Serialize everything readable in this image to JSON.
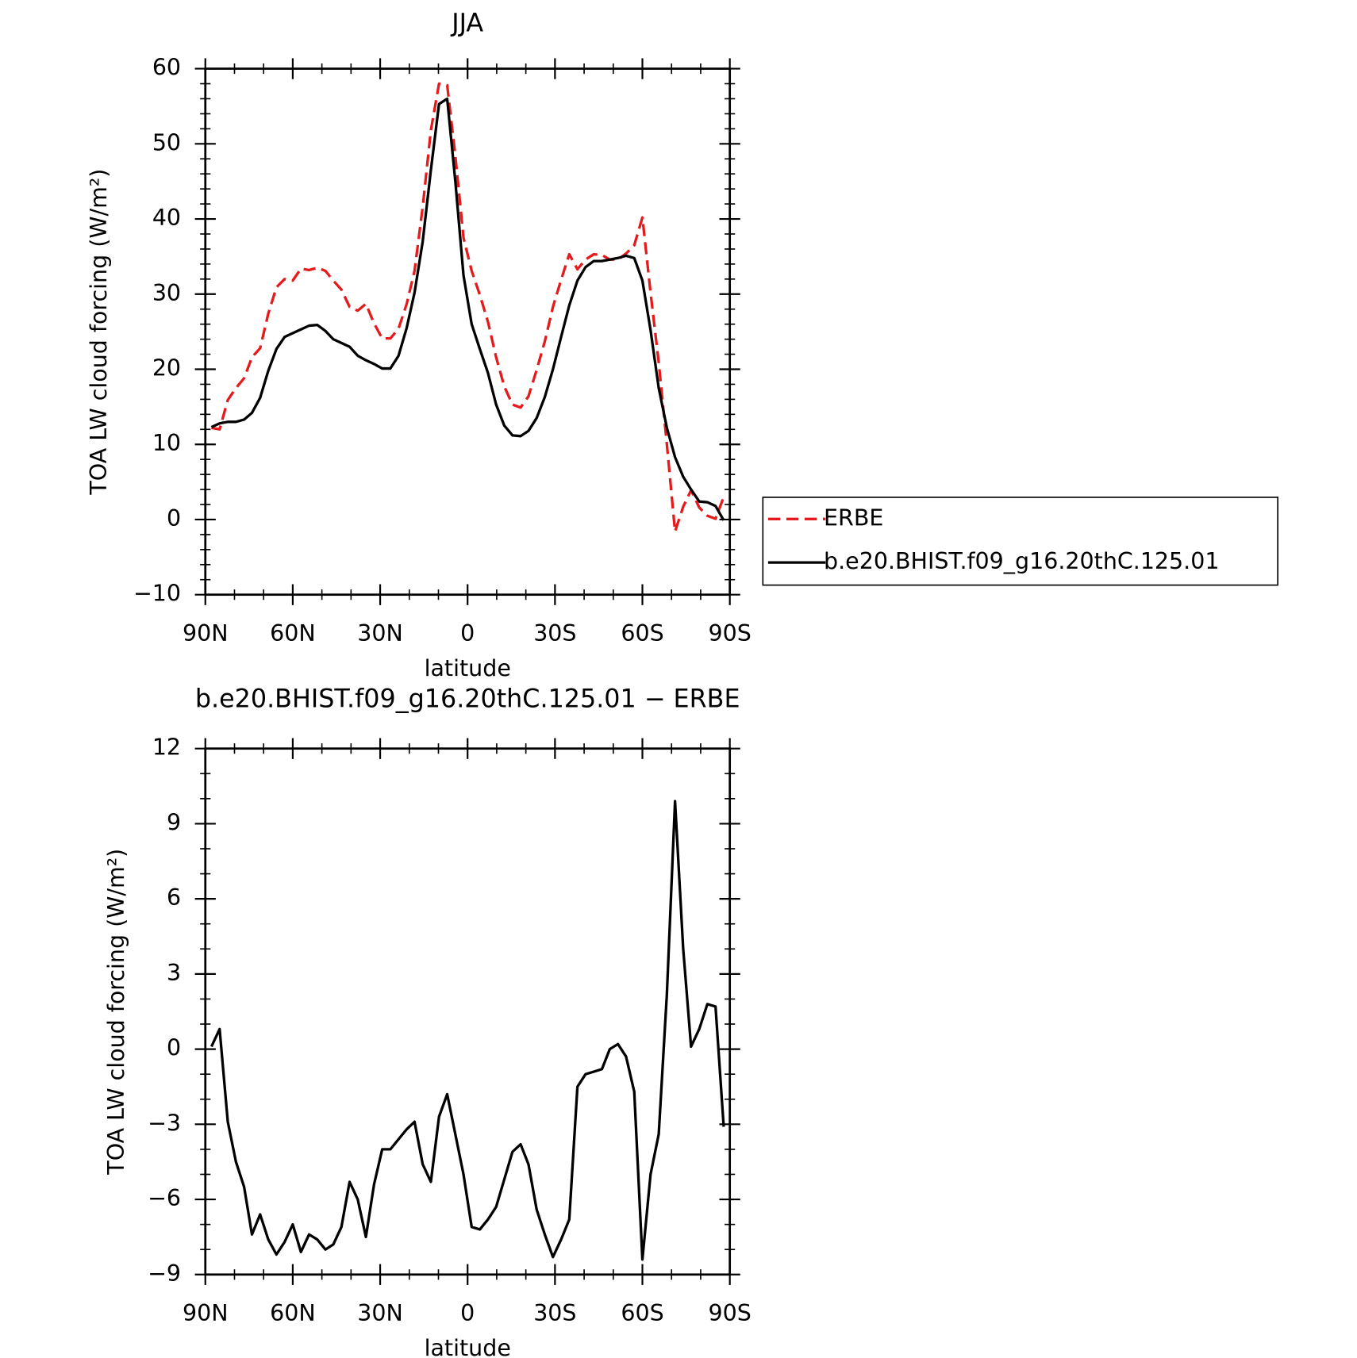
{
  "chart_data": [
    {
      "type": "line",
      "title": "JJA",
      "xlabel": "latitude",
      "ylabel": "TOA LW cloud forcing (W/m²)",
      "x": [
        87.9,
        85.1,
        82.3,
        79.5,
        76.7,
        74.0,
        71.2,
        68.4,
        65.6,
        62.8,
        60.0,
        57.2,
        54.4,
        51.6,
        48.8,
        46.1,
        43.3,
        40.5,
        37.7,
        34.9,
        32.1,
        29.3,
        26.5,
        23.7,
        20.9,
        18.2,
        15.4,
        12.6,
        9.8,
        7.0,
        4.2,
        1.4,
        -1.4,
        -4.2,
        -7.0,
        -9.8,
        -12.6,
        -15.4,
        -18.2,
        -20.9,
        -23.7,
        -26.5,
        -29.3,
        -32.1,
        -34.9,
        -37.7,
        -40.5,
        -43.3,
        -46.1,
        -48.8,
        -51.6,
        -54.4,
        -57.2,
        -60.0,
        -62.8,
        -65.6,
        -68.4,
        -71.2,
        -74.0,
        -76.7,
        -79.5,
        -82.3,
        -85.1,
        -87.9
      ],
      "series": [
        {
          "name": "ERBE",
          "color": "#e41a1c",
          "dash": true,
          "values": [
            12.2,
            12.0,
            15.9,
            17.5,
            18.8,
            21.6,
            22.8,
            27.4,
            30.9,
            32.0,
            31.8,
            33.4,
            33.2,
            33.5,
            33.1,
            31.8,
            30.6,
            28.3,
            27.8,
            28.7,
            26.1,
            24.1,
            24.1,
            25.4,
            28.7,
            33.1,
            41.6,
            51.8,
            58.0,
            57.8,
            48.4,
            37.5,
            33.1,
            29.9,
            26.3,
            21.6,
            17.7,
            15.3,
            14.9,
            16.4,
            19.9,
            23.7,
            28.3,
            31.9,
            35.3,
            33.3,
            34.6,
            35.3,
            35.2,
            34.6,
            34.6,
            35.4,
            36.5,
            40.2,
            30.2,
            20.9,
            10.0,
            -1.6,
            1.7,
            3.9,
            1.6,
            0.5,
            0.1,
            3.0
          ]
        },
        {
          "name": "b.e20.BHIST.f09_g16.20thC.125.01",
          "color": "#000000",
          "dash": false,
          "values": [
            12.3,
            12.8,
            13.0,
            13.0,
            13.3,
            14.2,
            16.2,
            19.8,
            22.7,
            24.3,
            24.8,
            25.3,
            25.8,
            25.9,
            25.1,
            24.0,
            23.5,
            23.0,
            21.8,
            21.2,
            20.7,
            20.1,
            20.1,
            21.8,
            25.5,
            30.2,
            37.0,
            46.5,
            55.3,
            56.0,
            45.0,
            32.5,
            26.0,
            22.7,
            19.5,
            15.3,
            12.5,
            11.2,
            11.1,
            11.8,
            13.5,
            16.3,
            20.0,
            24.3,
            28.5,
            31.8,
            33.6,
            34.4,
            34.4,
            34.6,
            34.8,
            35.1,
            34.8,
            31.8,
            25.2,
            17.5,
            12.2,
            8.3,
            5.7,
            4.0,
            2.4,
            2.3,
            1.8,
            -0.1
          ]
        }
      ],
      "xlim": [
        90,
        -90
      ],
      "xticks": [
        {
          "value": 90,
          "label": "90N"
        },
        {
          "value": 60,
          "label": "60N"
        },
        {
          "value": 30,
          "label": "30N"
        },
        0,
        {
          "value": -30,
          "label": "30S"
        },
        {
          "value": -60,
          "label": "60S"
        },
        {
          "value": -90,
          "label": "90S"
        }
      ],
      "ylim": [
        -10,
        60
      ],
      "yticks": [
        {
          "value": -10,
          "label": "−10"
        },
        0,
        10,
        20,
        30,
        40,
        50,
        60
      ],
      "legend": "right"
    },
    {
      "type": "line",
      "title": "b.e20.BHIST.f09_g16.20thC.125.01 − ERBE",
      "xlabel": "latitude",
      "ylabel": "TOA LW cloud forcing (W/m²)",
      "x": [
        87.9,
        85.1,
        82.3,
        79.5,
        76.7,
        74.0,
        71.2,
        68.4,
        65.6,
        62.8,
        60.0,
        57.2,
        54.4,
        51.6,
        48.8,
        46.1,
        43.3,
        40.5,
        37.7,
        34.9,
        32.1,
        29.3,
        26.5,
        23.7,
        20.9,
        18.2,
        15.4,
        12.6,
        9.8,
        7.0,
        4.2,
        1.4,
        -1.4,
        -4.2,
        -7.0,
        -9.8,
        -12.6,
        -15.4,
        -18.2,
        -20.9,
        -23.7,
        -26.5,
        -29.3,
        -32.1,
        -34.9,
        -37.7,
        -40.5,
        -43.3,
        -46.1,
        -48.8,
        -51.6,
        -54.4,
        -57.2,
        -60.0,
        -62.8,
        -65.6,
        -68.4,
        -71.2,
        -74.0,
        -76.7,
        -79.5,
        -82.3,
        -85.1,
        -87.9
      ],
      "series": [
        {
          "color": "#000000",
          "dash": false,
          "values": [
            0.1,
            0.8,
            -2.9,
            -4.5,
            -5.5,
            -7.4,
            -6.6,
            -7.6,
            -8.2,
            -7.7,
            -7.0,
            -8.1,
            -7.4,
            -7.6,
            -8.0,
            -7.8,
            -7.1,
            -5.3,
            -6.0,
            -7.5,
            -5.4,
            -4.0,
            -4.0,
            -3.6,
            -3.2,
            -2.9,
            -4.6,
            -5.3,
            -2.7,
            -1.8,
            -3.4,
            -5.0,
            -7.1,
            -7.2,
            -6.8,
            -6.3,
            -5.2,
            -4.1,
            -3.8,
            -4.6,
            -6.4,
            -7.4,
            -8.3,
            -7.6,
            -6.8,
            -1.5,
            -1.0,
            -0.9,
            -0.8,
            0.0,
            0.2,
            -0.3,
            -1.7,
            -8.4,
            -5.0,
            -3.4,
            2.2,
            9.9,
            4.0,
            0.1,
            0.8,
            1.8,
            1.7,
            -3.1
          ]
        }
      ],
      "xlim": [
        90,
        -90
      ],
      "xticks": [
        {
          "value": 90,
          "label": "90N"
        },
        {
          "value": 60,
          "label": "60N"
        },
        {
          "value": 30,
          "label": "30N"
        },
        0,
        {
          "value": -30,
          "label": "30S"
        },
        {
          "value": -60,
          "label": "60S"
        },
        {
          "value": -90,
          "label": "90S"
        }
      ],
      "ylim": [
        -9,
        12
      ],
      "yticks": [
        {
          "value": -9,
          "label": "−9"
        },
        {
          "value": -6,
          "label": "−6"
        },
        {
          "value": -3,
          "label": "−3"
        },
        0,
        3,
        6,
        9,
        12
      ]
    }
  ]
}
